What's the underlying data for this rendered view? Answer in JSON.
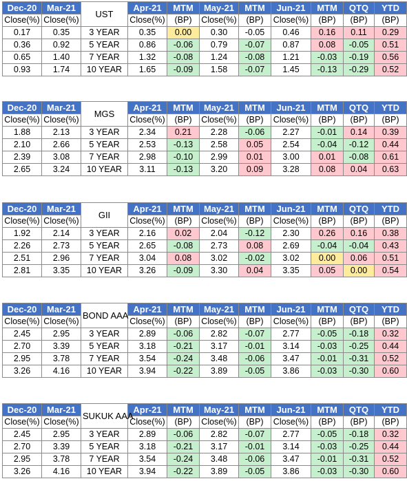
{
  "colors": {
    "header": "#4472c4",
    "red": "#ffc7ce",
    "green": "#c6efce",
    "yellow": "#ffeb9c"
  },
  "header": [
    "Dec-20",
    "Mar-21",
    "",
    "Apr-21",
    "MTM",
    "May-21",
    "MTM",
    "Jun-21",
    "MTM",
    "QTQ",
    "YTD"
  ],
  "subheader": [
    "Close(%)",
    "Close(%)",
    "Close(%)",
    "(BP)",
    "Close(%)",
    "(BP)",
    "Close(%)",
    "(BP)",
    "(BP)",
    "(BP)"
  ],
  "tables": [
    {
      "name": "UST",
      "rows": [
        {
          "c": [
            "0.17",
            "0.35",
            "3 YEAR",
            "0.35",
            "0.00",
            "0.30",
            "-0.05",
            "0.46",
            "0.16",
            "0.11",
            "0.29"
          ],
          "h": [
            "yellow",
            "none",
            "red",
            "red",
            "red"
          ]
        },
        {
          "c": [
            "0.36",
            "0.92",
            "5 YEAR",
            "0.86",
            "-0.06",
            "0.79",
            "-0.07",
            "0.87",
            "0.08",
            "-0.05",
            "0.51"
          ],
          "h": [
            "green",
            "green",
            "red",
            "green",
            "red"
          ]
        },
        {
          "c": [
            "0.65",
            "1.40",
            "7 YEAR",
            "1.32",
            "-0.08",
            "1.24",
            "-0.08",
            "1.21",
            "-0.03",
            "-0.19",
            "0.56"
          ],
          "h": [
            "green",
            "green",
            "green",
            "green",
            "red"
          ]
        },
        {
          "c": [
            "0.93",
            "1.74",
            "10 YEAR",
            "1.65",
            "-0.09",
            "1.58",
            "-0.07",
            "1.45",
            "-0.13",
            "-0.29",
            "0.52"
          ],
          "h": [
            "green",
            "green",
            "green",
            "green",
            "red"
          ]
        }
      ]
    },
    {
      "name": "MGS",
      "rows": [
        {
          "c": [
            "1.88",
            "2.13",
            "3 YEAR",
            "2.34",
            "0.21",
            "2.28",
            "-0.06",
            "2.27",
            "-0.01",
            "0.14",
            "0.39"
          ],
          "h": [
            "red",
            "green",
            "green",
            "red",
            "red"
          ]
        },
        {
          "c": [
            "2.10",
            "2.66",
            "5 YEAR",
            "2.53",
            "-0.13",
            "2.58",
            "0.05",
            "2.54",
            "-0.04",
            "-0.12",
            "0.44"
          ],
          "h": [
            "green",
            "red",
            "green",
            "green",
            "red"
          ]
        },
        {
          "c": [
            "2.39",
            "3.08",
            "7 YEAR",
            "2.98",
            "-0.10",
            "2.99",
            "0.01",
            "3.00",
            "0.01",
            "-0.08",
            "0.61"
          ],
          "h": [
            "green",
            "red",
            "red",
            "green",
            "red"
          ]
        },
        {
          "c": [
            "2.65",
            "3.24",
            "10 YEAR",
            "3.11",
            "-0.13",
            "3.20",
            "0.09",
            "3.28",
            "0.08",
            "0.04",
            "0.63"
          ],
          "h": [
            "green",
            "red",
            "red",
            "red",
            "red"
          ]
        }
      ]
    },
    {
      "name": "GII",
      "rows": [
        {
          "c": [
            "1.92",
            "2.14",
            "3 YEAR",
            "2.16",
            "0.02",
            "2.04",
            "-0.12",
            "2.30",
            "0.26",
            "0.16",
            "0.38"
          ],
          "h": [
            "red",
            "green",
            "red",
            "red",
            "red"
          ]
        },
        {
          "c": [
            "2.26",
            "2.73",
            "5 YEAR",
            "2.65",
            "-0.08",
            "2.73",
            "0.08",
            "2.69",
            "-0.04",
            "-0.04",
            "0.43"
          ],
          "h": [
            "green",
            "red",
            "green",
            "green",
            "red"
          ]
        },
        {
          "c": [
            "2.51",
            "2.96",
            "7 YEAR",
            "3.04",
            "0.08",
            "3.02",
            "-0.02",
            "3.02",
            "0.00",
            "0.06",
            "0.51"
          ],
          "h": [
            "red",
            "green",
            "yellow",
            "red",
            "red"
          ]
        },
        {
          "c": [
            "2.81",
            "3.35",
            "10 YEAR",
            "3.26",
            "-0.09",
            "3.30",
            "0.04",
            "3.35",
            "0.05",
            "0.00",
            "0.54"
          ],
          "h": [
            "green",
            "red",
            "red",
            "yellow",
            "red"
          ]
        }
      ]
    },
    {
      "name": "BOND AAA",
      "rows": [
        {
          "c": [
            "2.45",
            "2.95",
            "3 YEAR",
            "2.89",
            "-0.06",
            "2.82",
            "-0.07",
            "2.77",
            "-0.05",
            "-0.18",
            "0.32"
          ],
          "h": [
            "green",
            "green",
            "green",
            "green",
            "red"
          ]
        },
        {
          "c": [
            "2.70",
            "3.39",
            "5 YEAR",
            "3.18",
            "-0.21",
            "3.17",
            "-0.01",
            "3.14",
            "-0.03",
            "-0.25",
            "0.44"
          ],
          "h": [
            "green",
            "green",
            "green",
            "green",
            "red"
          ]
        },
        {
          "c": [
            "2.95",
            "3.78",
            "7 YEAR",
            "3.54",
            "-0.24",
            "3.48",
            "-0.06",
            "3.47",
            "-0.01",
            "-0.31",
            "0.52"
          ],
          "h": [
            "green",
            "green",
            "green",
            "green",
            "red"
          ]
        },
        {
          "c": [
            "3.26",
            "4.16",
            "10 YEAR",
            "3.94",
            "-0.22",
            "3.89",
            "-0.05",
            "3.86",
            "-0.03",
            "-0.30",
            "0.60"
          ],
          "h": [
            "green",
            "green",
            "green",
            "green",
            "red"
          ]
        }
      ]
    },
    {
      "name": "SUKUK AAA",
      "rows": [
        {
          "c": [
            "2.45",
            "2.95",
            "3 YEAR",
            "2.89",
            "-0.06",
            "2.82",
            "-0.07",
            "2.77",
            "-0.05",
            "-0.18",
            "0.32"
          ],
          "h": [
            "green",
            "green",
            "green",
            "green",
            "red"
          ]
        },
        {
          "c": [
            "2.70",
            "3.39",
            "5 YEAR",
            "3.18",
            "-0.21",
            "3.17",
            "-0.01",
            "3.14",
            "-0.03",
            "-0.25",
            "0.44"
          ],
          "h": [
            "green",
            "green",
            "green",
            "green",
            "red"
          ]
        },
        {
          "c": [
            "2.95",
            "3.78",
            "7 YEAR",
            "3.54",
            "-0.24",
            "3.48",
            "-0.06",
            "3.47",
            "-0.01",
            "-0.31",
            "0.52"
          ],
          "h": [
            "green",
            "green",
            "green",
            "green",
            "red"
          ]
        },
        {
          "c": [
            "3.26",
            "4.16",
            "10 YEAR",
            "3.94",
            "-0.22",
            "3.89",
            "-0.05",
            "3.86",
            "-0.03",
            "-0.30",
            "0.60"
          ],
          "h": [
            "green",
            "green",
            "green",
            "green",
            "red"
          ]
        }
      ]
    }
  ]
}
